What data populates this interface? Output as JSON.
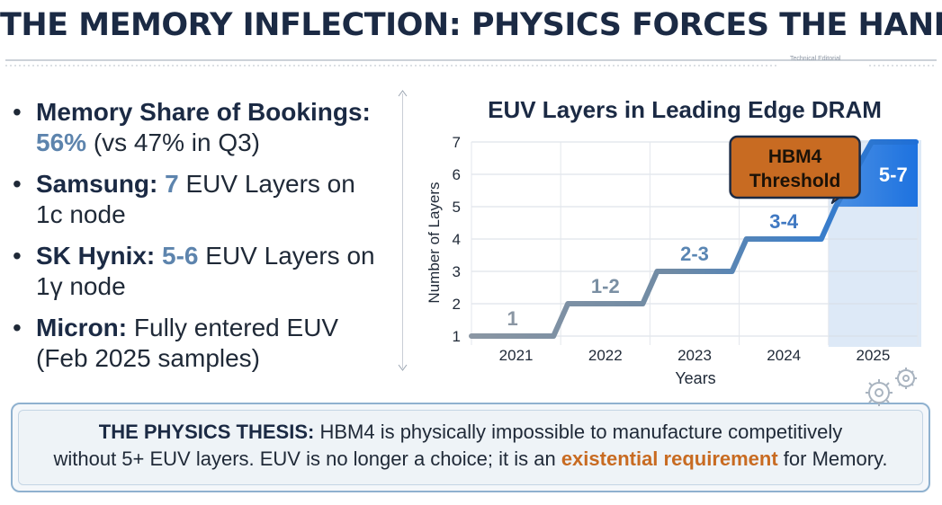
{
  "header": {
    "title": "THE MEMORY INFLECTION: PHYSICS FORCES THE HAND",
    "tag": "Technical Editorial"
  },
  "bullets": [
    {
      "label": "Memory Share of Bookings:",
      "value": "56%",
      "text": " (vs 47% in Q3)"
    },
    {
      "label": "Samsung:",
      "value": "7",
      "text": " EUV Layers on 1c node"
    },
    {
      "label": "SK Hynix:",
      "value": "5-6",
      "text": " EUV Layers on 1γ node"
    },
    {
      "label": "Micron:",
      "value": "",
      "text": " Fully entered EUV (Feb 2025 samples)"
    }
  ],
  "chart_data": {
    "type": "line",
    "title": "EUV Layers in Leading Edge DRAM",
    "xlabel": "Years",
    "ylabel": "Number of Layers",
    "categories": [
      "2021",
      "2022",
      "2023",
      "2024",
      "2025"
    ],
    "yticks": [
      "1",
      "2",
      "3",
      "4",
      "5",
      "6",
      "7"
    ],
    "ylim": [
      1,
      7
    ],
    "steps": [
      {
        "year": "2021",
        "value": 1,
        "label": "1"
      },
      {
        "year": "2022",
        "value": 2,
        "label": "1-2"
      },
      {
        "year": "2023",
        "value": 3,
        "label": "2-3"
      },
      {
        "year": "2024",
        "value": 4,
        "label": "3-4"
      },
      {
        "year": "2025",
        "value": 7,
        "label": "5-7",
        "range": [
          5,
          7
        ]
      }
    ],
    "annotation": {
      "text_line1": "HBM4",
      "text_line2": "Threshold",
      "value": 5
    },
    "colors": {
      "line_start": "#8a96a3",
      "line_end": "#2e7bd6",
      "band": "#dde9f7",
      "range_fill": "#2f80e0",
      "callout_fill": "#c86b22",
      "callout_border": "#1b2a44"
    }
  },
  "thesis": {
    "label": "THE PHYSICS THESIS:",
    "text1": " HBM4 is physically impossible to manufacture competitively",
    "text2": "without 5+ EUV layers. EUV is no longer a choice; it is an ",
    "highlight": "existential requirement",
    "text3": " for Memory."
  }
}
